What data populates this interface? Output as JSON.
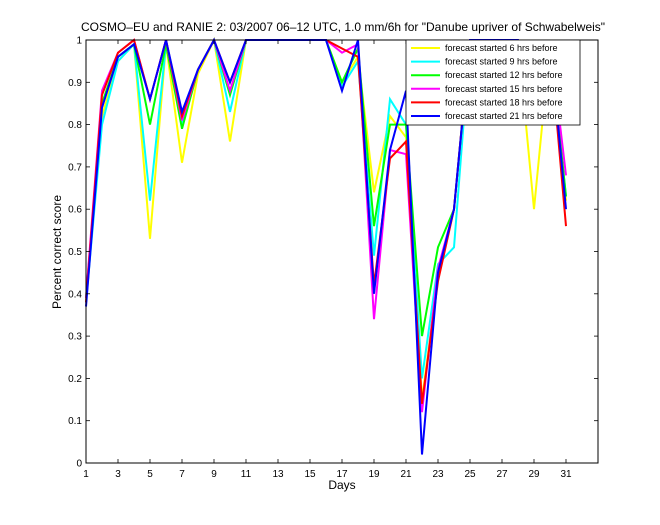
{
  "chart_data": {
    "type": "line",
    "title": "COSMO–EU and RANIE 2: 03/2007 06–12 UTC, 1.0 mm/6h for \"Danube upriver of Schwabelweis\"",
    "xlabel": "Days",
    "ylabel": "Percent correct score",
    "xlim": [
      1,
      33
    ],
    "ylim": [
      0,
      1
    ],
    "xticks": [
      "1",
      "3",
      "5",
      "7",
      "9",
      "11",
      "13",
      "15",
      "17",
      "19",
      "21",
      "23",
      "25",
      "27",
      "29",
      "31"
    ],
    "yticks": [
      "0",
      "0.1",
      "0.2",
      "0.3",
      "0.4",
      "0.5",
      "0.6",
      "0.7",
      "0.8",
      "0.9",
      "1"
    ],
    "grid": false,
    "legend_position": "top-right",
    "x": [
      1,
      2,
      3,
      4,
      5,
      6,
      7,
      8,
      9,
      10,
      11,
      12,
      13,
      14,
      15,
      16,
      17,
      18,
      19,
      20,
      21,
      22,
      23,
      24,
      25,
      26,
      27,
      28,
      29,
      30,
      31
    ],
    "series": [
      {
        "name": "forecast started 6 hrs before",
        "color": "#ffff00",
        "values": [
          0.38,
          0.82,
          0.95,
          0.99,
          0.53,
          0.99,
          0.71,
          0.92,
          1.0,
          0.76,
          1.0,
          1.0,
          1.0,
          1.0,
          1.0,
          1.0,
          0.9,
          0.96,
          0.64,
          0.82,
          0.77,
          0.15,
          0.44,
          0.6,
          1.0,
          1.0,
          1.0,
          1.0,
          0.6,
          0.99,
          0.62
        ]
      },
      {
        "name": "forecast started 9 hrs before",
        "color": "#00ffff",
        "values": [
          0.38,
          0.8,
          0.95,
          0.99,
          0.62,
          0.99,
          0.8,
          0.93,
          1.0,
          0.83,
          1.0,
          1.0,
          1.0,
          1.0,
          1.0,
          1.0,
          0.89,
          0.95,
          0.49,
          0.86,
          0.8,
          0.2,
          0.47,
          0.51,
          1.0,
          1.0,
          1.0,
          1.0,
          0.85,
          0.99,
          0.63
        ]
      },
      {
        "name": "forecast started 12 hrs before",
        "color": "#00ff00",
        "values": [
          0.39,
          0.85,
          0.96,
          0.99,
          0.8,
          0.99,
          0.79,
          0.93,
          1.0,
          0.87,
          1.0,
          1.0,
          1.0,
          1.0,
          1.0,
          1.0,
          0.9,
          0.98,
          0.56,
          0.8,
          0.8,
          0.3,
          0.51,
          0.6,
          1.0,
          1.0,
          1.0,
          0.97,
          0.83,
          0.99,
          0.63
        ]
      },
      {
        "name": "forecast started 15 hrs before",
        "color": "#ff00ff",
        "values": [
          0.39,
          0.88,
          0.97,
          1.0,
          0.86,
          1.0,
          0.81,
          0.93,
          1.0,
          0.88,
          1.0,
          1.0,
          1.0,
          1.0,
          1.0,
          1.0,
          0.97,
          0.99,
          0.34,
          0.74,
          0.73,
          0.12,
          0.46,
          0.6,
          1.0,
          1.0,
          1.0,
          1.0,
          0.89,
          1.0,
          0.68
        ]
      },
      {
        "name": "forecast started 18 hrs before",
        "color": "#ff0000",
        "values": [
          0.38,
          0.87,
          0.97,
          1.0,
          0.86,
          1.0,
          0.82,
          0.93,
          1.0,
          0.9,
          1.0,
          1.0,
          1.0,
          1.0,
          1.0,
          1.0,
          0.98,
          0.96,
          0.42,
          0.72,
          0.76,
          0.14,
          0.43,
          0.6,
          1.0,
          1.0,
          1.0,
          0.99,
          0.9,
          0.99,
          0.56
        ]
      },
      {
        "name": "forecast started 21 hrs before",
        "color": "#0000ff",
        "values": [
          0.37,
          0.84,
          0.96,
          0.99,
          0.86,
          1.0,
          0.83,
          0.93,
          1.0,
          0.9,
          1.0,
          1.0,
          1.0,
          1.0,
          1.0,
          1.0,
          0.88,
          1.0,
          0.4,
          0.74,
          0.88,
          0.02,
          0.45,
          0.6,
          1.0,
          1.0,
          1.0,
          1.0,
          0.88,
          1.0,
          0.6
        ]
      }
    ]
  }
}
